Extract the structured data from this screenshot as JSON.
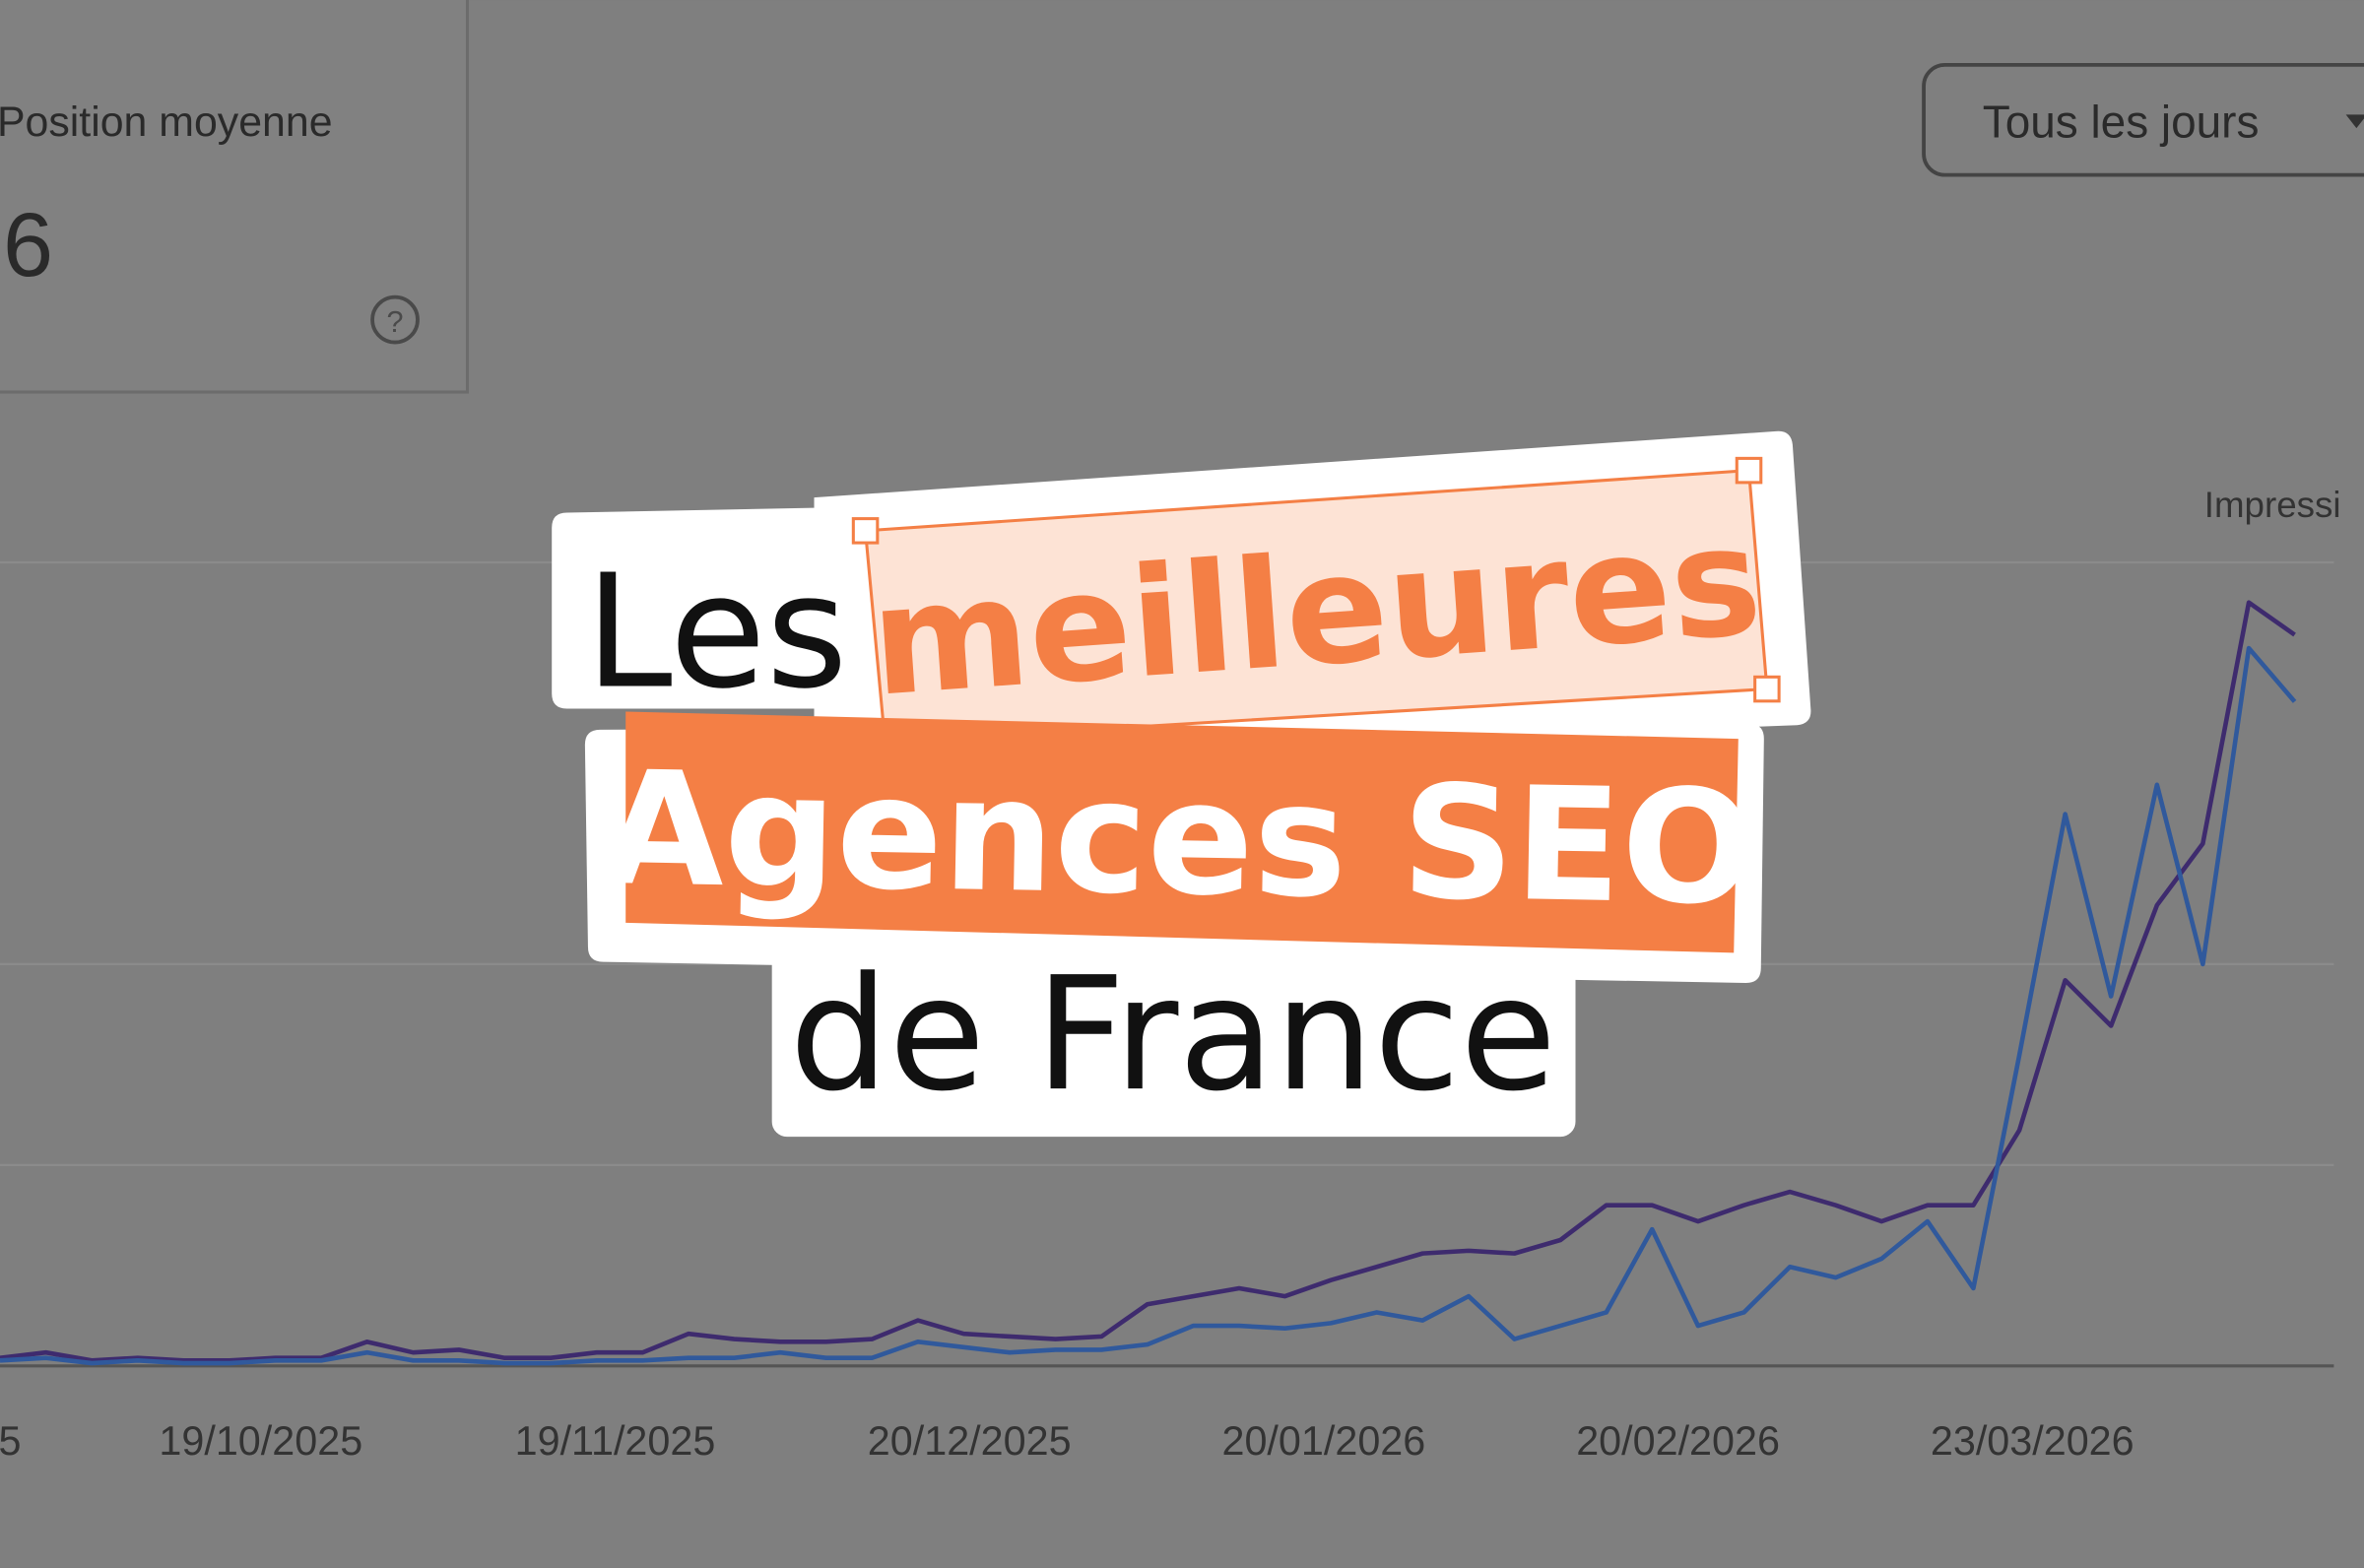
{
  "metric_card": {
    "label": "Position moyenne",
    "value": 6
  },
  "period_select": "Tous les jours",
  "chart_data": {
    "type": "line",
    "y_axis_label": "Impressi",
    "x_labels": [
      "5",
      "19/10/2025",
      "19/11/2025",
      "20/12/2025",
      "20/01/2026",
      "20/02/2026",
      "23/03/2026"
    ],
    "ylim": [
      0,
      3
    ],
    "grid": true,
    "series": [
      {
        "color": "#3e2b6e",
        "values": [
          0.03,
          0.05,
          0.02,
          0.03,
          0.02,
          0.02,
          0.03,
          0.03,
          0.09,
          0.05,
          0.06,
          0.03,
          0.03,
          0.05,
          0.05,
          0.12,
          0.1,
          0.09,
          0.09,
          0.1,
          0.17,
          0.12,
          0.11,
          0.1,
          0.11,
          0.23,
          0.26,
          0.29,
          0.26,
          0.32,
          0.37,
          0.42,
          0.43,
          0.42,
          0.47,
          0.6,
          0.6,
          0.54,
          0.6,
          0.65,
          0.6,
          0.54,
          0.6,
          0.6,
          0.88,
          1.44,
          1.27,
          1.72,
          1.95,
          2.85,
          2.73
        ]
      },
      {
        "color": "#30599c",
        "values": [
          0.02,
          0.03,
          0.01,
          0.02,
          0.01,
          0.01,
          0.02,
          0.02,
          0.05,
          0.02,
          0.02,
          0.01,
          0.01,
          0.02,
          0.02,
          0.03,
          0.03,
          0.05,
          0.03,
          0.03,
          0.09,
          0.07,
          0.05,
          0.06,
          0.06,
          0.08,
          0.15,
          0.15,
          0.14,
          0.16,
          0.2,
          0.17,
          0.26,
          0.1,
          0.15,
          0.2,
          0.51,
          0.15,
          0.2,
          0.37,
          0.33,
          0.4,
          0.54,
          0.29,
          1.16,
          2.06,
          1.38,
          2.17,
          1.5,
          2.68,
          2.48
        ]
      }
    ]
  },
  "headline": {
    "line1": "Les",
    "highlight": "meilleures",
    "line2": "Agences SEO",
    "line3": "de France"
  }
}
